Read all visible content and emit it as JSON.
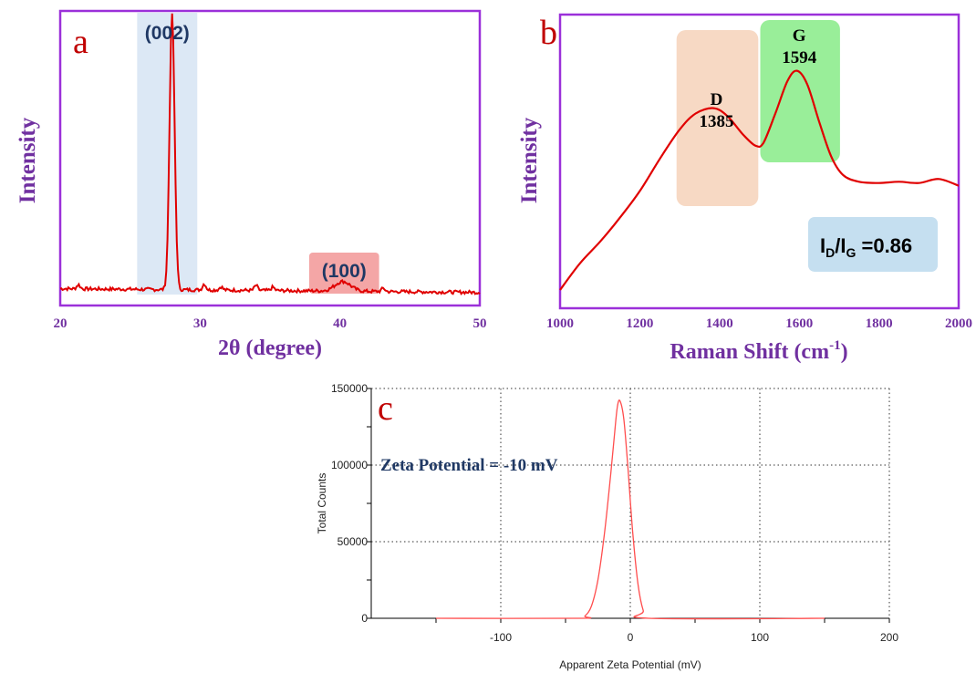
{
  "chart_data": [
    {
      "panel": "a",
      "type": "line",
      "xlabel": "2θ (degree)",
      "ylabel": "Intensity",
      "xlim": [
        20,
        50
      ],
      "x_ticks": [
        "20",
        "30",
        "40",
        "50"
      ],
      "series_color": "#e00000",
      "highlights": [
        {
          "label": "(002)",
          "from": 25.5,
          "to": 29.8,
          "color": "#dce8f5",
          "label_color": "#1f3864"
        },
        {
          "label": "(100)",
          "from": 37.8,
          "to": 42.8,
          "color": "#f4a6a6",
          "label_color": "#1f3864"
        }
      ],
      "peaks": [
        {
          "x": 28.0,
          "y": 1.0
        },
        {
          "x": 40.2,
          "y": 0.035
        }
      ]
    },
    {
      "panel": "b",
      "type": "line",
      "xlabel": "Raman Shift (cm⁻¹)",
      "ylabel": "Intensity",
      "xlim": [
        1000,
        2000
      ],
      "x_ticks": [
        "1000",
        "1200",
        "1400",
        "1600",
        "1800",
        "2000"
      ],
      "series_color": "#e00000",
      "highlights": [
        {
          "label_top": "D",
          "label_bottom": "1385",
          "from": 1290,
          "to": 1495,
          "color": "#f7d9c4"
        },
        {
          "label_top": "G",
          "label_bottom": "1594",
          "from": 1500,
          "to": 1700,
          "color": "#99ee99"
        }
      ],
      "annotation": {
        "text_main": "I",
        "sub1": "D",
        "slash": "/I",
        "sub2": "G",
        "tail": " =0.86",
        "box_color": "#c5dff0"
      },
      "points": [
        [
          1000,
          0.0
        ],
        [
          1050,
          0.1
        ],
        [
          1100,
          0.18
        ],
        [
          1150,
          0.27
        ],
        [
          1200,
          0.37
        ],
        [
          1250,
          0.49
        ],
        [
          1300,
          0.6
        ],
        [
          1340,
          0.66
        ],
        [
          1385,
          0.68
        ],
        [
          1420,
          0.65
        ],
        [
          1460,
          0.58
        ],
        [
          1490,
          0.54
        ],
        [
          1510,
          0.55
        ],
        [
          1540,
          0.66
        ],
        [
          1570,
          0.78
        ],
        [
          1594,
          0.82
        ],
        [
          1620,
          0.77
        ],
        [
          1650,
          0.63
        ],
        [
          1680,
          0.5
        ],
        [
          1710,
          0.43
        ],
        [
          1750,
          0.405
        ],
        [
          1800,
          0.4
        ],
        [
          1850,
          0.405
        ],
        [
          1900,
          0.4
        ],
        [
          1950,
          0.415
        ],
        [
          2000,
          0.39
        ]
      ]
    },
    {
      "panel": "c",
      "type": "line",
      "xlabel": "Apparent Zeta Potential (mV)",
      "ylabel": "Total Counts",
      "xlim": [
        -200,
        200
      ],
      "ylim": [
        0,
        150000
      ],
      "x_ticks": [
        "-100",
        "0",
        "100",
        "200"
      ],
      "y_ticks": [
        "0",
        "50000",
        "100000",
        "150000"
      ],
      "grid": true,
      "series_color": "#ff4d4d",
      "annotation": "Zeta Potential = -10 mV",
      "points": [
        [
          -150,
          0
        ],
        [
          -40,
          0
        ],
        [
          -35,
          1500
        ],
        [
          -30,
          8000
        ],
        [
          -25,
          25000
        ],
        [
          -20,
          55000
        ],
        [
          -15,
          95000
        ],
        [
          -12,
          122000
        ],
        [
          -10,
          138000
        ],
        [
          -8,
          142000
        ],
        [
          -5,
          130000
        ],
        [
          -2,
          100000
        ],
        [
          2,
          55000
        ],
        [
          6,
          22000
        ],
        [
          10,
          5000
        ],
        [
          14,
          0
        ],
        [
          150,
          0
        ]
      ]
    }
  ],
  "labels": {
    "panel_a": "a",
    "panel_b": "b",
    "panel_c": "c"
  }
}
